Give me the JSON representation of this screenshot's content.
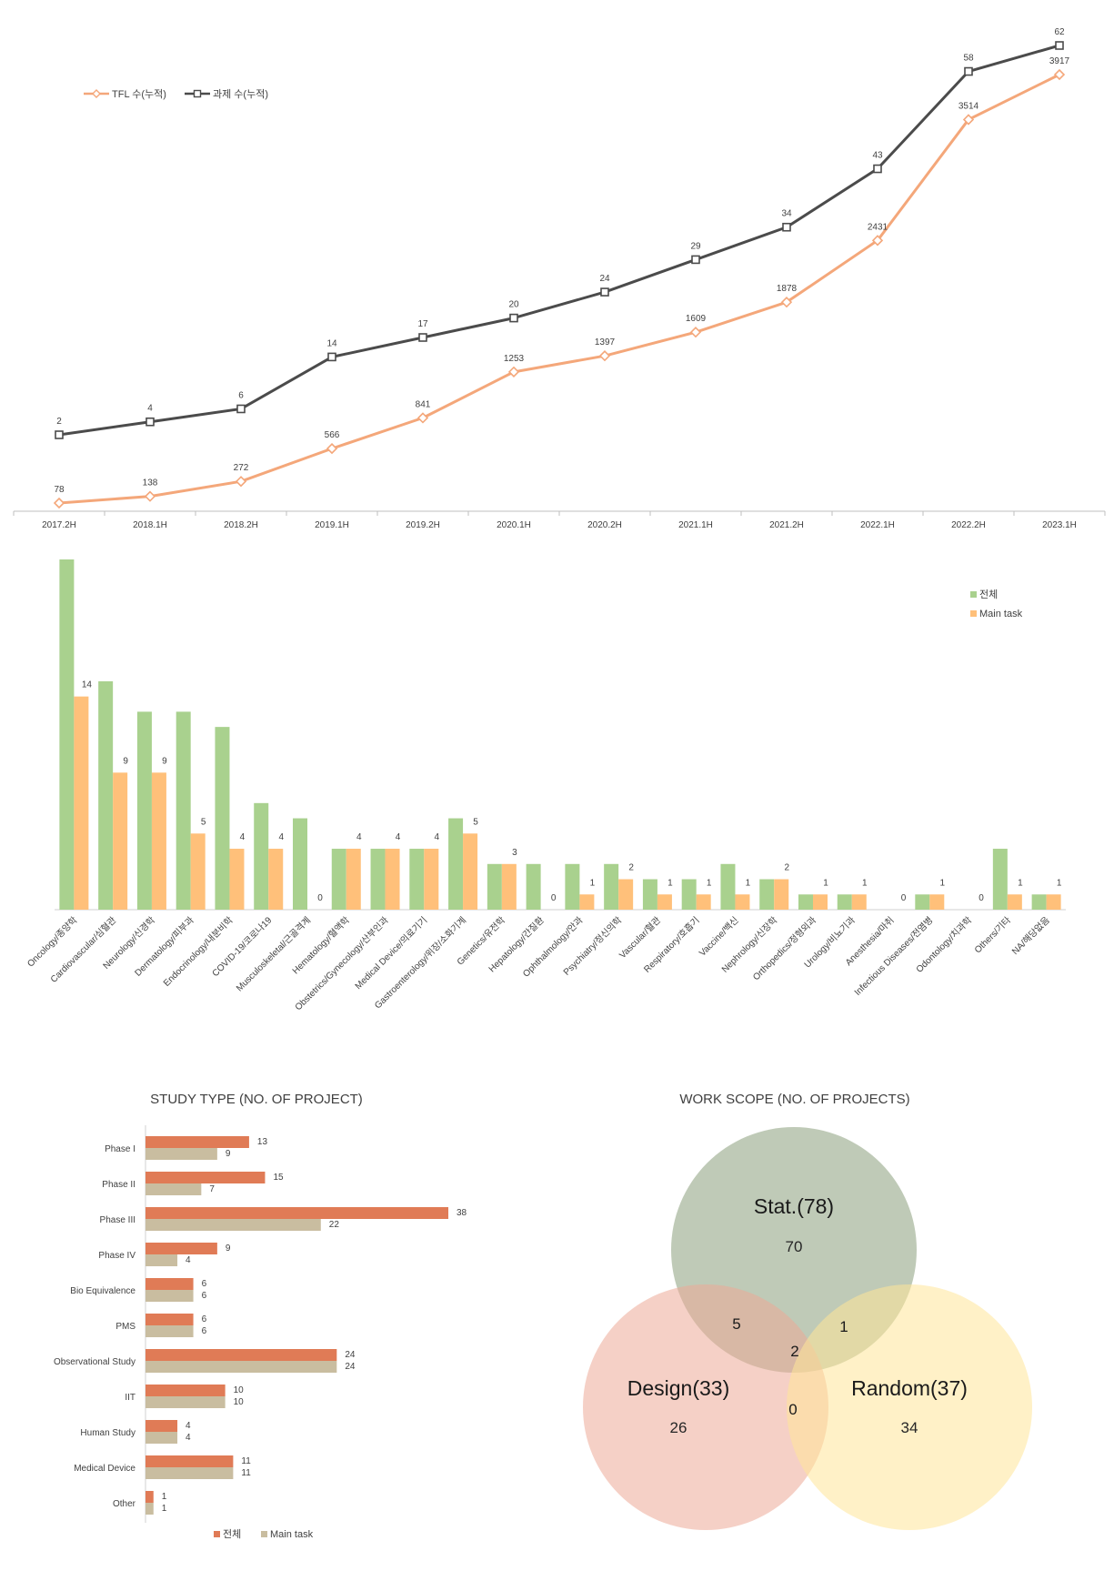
{
  "chart_data": [
    {
      "type": "line",
      "categories": [
        "2017.2H",
        "2018.1H",
        "2018.2H",
        "2019.1H",
        "2019.2H",
        "2020.1H",
        "2020.2H",
        "2021.1H",
        "2021.2H",
        "2022.1H",
        "2022.2H",
        "2023.1H"
      ],
      "series": [
        {
          "name": "TFL 수(누적)",
          "values": [
            78,
            138,
            272,
            566,
            841,
            1253,
            1397,
            1609,
            1878,
            2431,
            3514,
            3917
          ],
          "color": "#F4A77A"
        },
        {
          "name": "과제 수(누적)",
          "values": [
            2,
            4,
            6,
            14,
            17,
            20,
            24,
            29,
            34,
            43,
            58,
            62
          ],
          "color": "#4B4B4B"
        }
      ],
      "legend_position": "top-left",
      "grid": false
    },
    {
      "type": "bar",
      "categories": [
        "Oncology/종양학",
        "Cardiovascular/심혈관",
        "Neurology/신경학",
        "Dermatology/피부과",
        "Endocrinology/내분비학",
        "COVID-19/코로나19",
        "Musculoskeletal/근골격계",
        "Hematology/혈액학",
        "Obstetrics/Gynecology/산부인과",
        "Medical Device/의료기기",
        "Gastroenterology/위장/소화기계",
        "Genetics/유전학",
        "Hepatology/간질환",
        "Ophthalmology/안과",
        "Psychiatry/정신의학",
        "Vascular/혈관",
        "Respiratory/호흡기",
        "Vaccine/백신",
        "Nephrology/신장학",
        "Orthopedics/정형외과",
        "Urology/비뇨기과",
        "Anesthesia/마취",
        "Infectious Diseases/전염병",
        "Odontology/치과학",
        "Others/기타",
        "NA/해당없음"
      ],
      "series": [
        {
          "name": "전체",
          "values": [
            23,
            15,
            13,
            13,
            12,
            7,
            6,
            4,
            4,
            4,
            6,
            3,
            3,
            3,
            3,
            2,
            2,
            3,
            2,
            1,
            1,
            0,
            1,
            0,
            4,
            1
          ],
          "color": "#A9D18E"
        },
        {
          "name": "Main task",
          "values": [
            14,
            9,
            9,
            5,
            4,
            4,
            0,
            4,
            4,
            4,
            5,
            3,
            0,
            1,
            2,
            1,
            1,
            1,
            2,
            1,
            1,
            0,
            1,
            0,
            1,
            1
          ],
          "color": "#FFC07A"
        }
      ],
      "legend_position": "top-right",
      "grid": false
    },
    {
      "type": "bar",
      "orientation": "horizontal",
      "title": "STUDY TYPE (NO. OF PROJECT)",
      "categories": [
        "Phase I",
        "Phase II",
        "Phase III",
        "Phase IV",
        "Bio Equivalence",
        "PMS",
        "Observational Study",
        "IIT",
        "Human Study",
        "Medical Device",
        "Other"
      ],
      "series": [
        {
          "name": "전체",
          "values": [
            13,
            15,
            38,
            9,
            6,
            6,
            24,
            10,
            4,
            11,
            1
          ],
          "color": "#E07B56"
        },
        {
          "name": "Main task",
          "values": [
            9,
            7,
            22,
            4,
            6,
            6,
            24,
            10,
            4,
            11,
            1
          ],
          "color": "#C9BDA0"
        }
      ],
      "legend_position": "bottom",
      "grid": false
    },
    {
      "type": "venn",
      "title": "WORK SCOPE (NO. OF PROJECTS)",
      "sets": [
        {
          "label": "Stat.(78)",
          "only": 70,
          "color": "#8A9E7B"
        },
        {
          "label": "Design(33)",
          "only": 26,
          "color": "#EDAA98"
        },
        {
          "label": "Random(37)",
          "only": 34,
          "color": "#FFE599"
        }
      ],
      "intersections": {
        "stat_design": 5,
        "stat_random": 1,
        "design_random": 0,
        "all": 2
      }
    }
  ]
}
